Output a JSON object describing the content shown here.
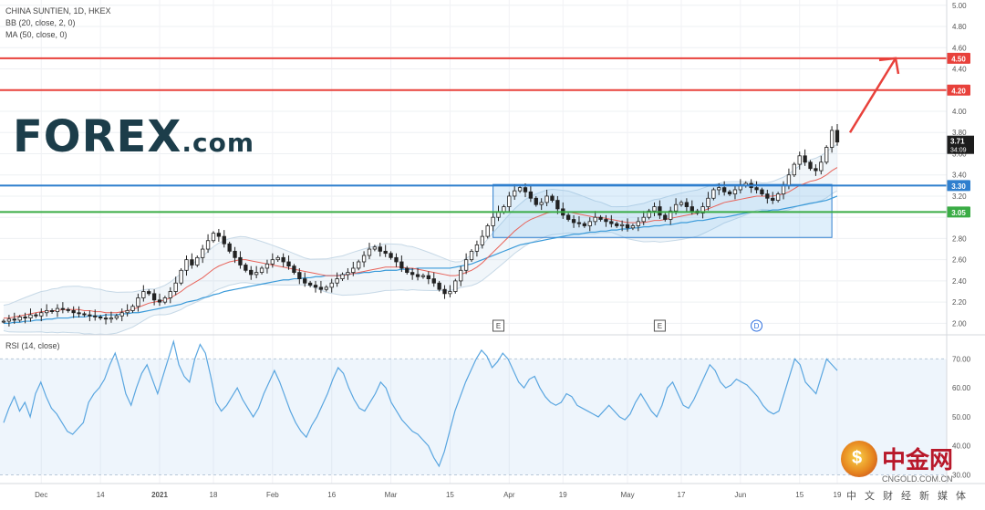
{
  "chart_data": [
    {
      "type": "candlestick",
      "legend_lines": [
        "CHINA SUNTIEN, 1D, HKEX",
        "BB (20, close, 2, 0)",
        "MA (50, close, 0)"
      ],
      "ylim": [
        1.9,
        5.05
      ],
      "y_ticks": [
        2.0,
        2.2,
        2.4,
        2.6,
        2.8,
        3.0,
        3.2,
        3.4,
        3.6,
        3.8,
        4.0,
        4.2,
        4.4,
        4.6,
        4.8,
        5.0
      ],
      "y_tick_labels": [
        "2.00",
        "2.20",
        "2.40",
        "2.60",
        "2.80",
        "3.00",
        "3.20",
        "3.40",
        "3.60",
        "3.80",
        "4.00",
        "4.20",
        "4.40",
        "4.60",
        "4.80",
        "5.00"
      ],
      "x_tick_labels": [
        "Dec",
        "14",
        "2021",
        "18",
        "Feb",
        "16",
        "Mar",
        "15",
        "Apr",
        "19",
        "May",
        "17",
        "Jun",
        "15",
        "19"
      ],
      "horizontal_levels": [
        {
          "value": 4.5,
          "label": "4.50",
          "color": "#e8413b"
        },
        {
          "value": 4.2,
          "label": "4.20",
          "color": "#e8413b"
        },
        {
          "value": 3.3,
          "label": "3.30",
          "color": "#2f7fce"
        },
        {
          "value": 3.05,
          "label": "3.05",
          "color": "#3aac45"
        }
      ],
      "last_price": {
        "value": 3.71,
        "label": "3.71",
        "countdown": "34:09"
      },
      "range_box": {
        "y_top": 3.31,
        "y_bottom": 2.81,
        "fill": "rgba(110,180,235,0.22)",
        "stroke": "#2f7fce"
      },
      "event_markers": [
        "E",
        "E",
        "D"
      ],
      "arrow": {
        "from": [
          3.8
        ],
        "to": [
          4.5
        ],
        "color": "#e8413b"
      },
      "series": [
        {
          "name": "Close",
          "values": [
            2.02,
            2.04,
            2.03,
            2.06,
            2.05,
            2.08,
            2.07,
            2.1,
            2.12,
            2.11,
            2.14,
            2.13,
            2.12,
            2.1,
            2.09,
            2.08,
            2.07,
            2.06,
            2.05,
            2.04,
            2.05,
            2.07,
            2.1,
            2.12,
            2.16,
            2.24,
            2.3,
            2.28,
            2.22,
            2.2,
            2.24,
            2.3,
            2.38,
            2.5,
            2.6,
            2.55,
            2.62,
            2.7,
            2.78,
            2.85,
            2.82,
            2.75,
            2.68,
            2.62,
            2.55,
            2.5,
            2.46,
            2.48,
            2.52,
            2.56,
            2.6,
            2.62,
            2.58,
            2.54,
            2.48,
            2.42,
            2.38,
            2.36,
            2.34,
            2.32,
            2.34,
            2.38,
            2.42,
            2.46,
            2.48,
            2.52,
            2.58,
            2.64,
            2.7,
            2.72,
            2.68,
            2.66,
            2.62,
            2.58,
            2.52,
            2.48,
            2.46,
            2.44,
            2.45,
            2.42,
            2.38,
            2.32,
            2.28,
            2.3,
            2.4,
            2.5,
            2.6,
            2.68,
            2.74,
            2.82,
            2.92,
            3.0,
            3.05,
            3.1,
            3.2,
            3.25,
            3.28,
            3.24,
            3.18,
            3.12,
            3.14,
            3.2,
            3.16,
            3.08,
            3.02,
            2.98,
            2.95,
            2.94,
            2.92,
            2.96,
            3.0,
            2.98,
            2.96,
            2.94,
            2.92,
            2.93,
            2.9,
            2.92,
            2.96,
            3.0,
            3.06,
            3.1,
            3.02,
            2.98,
            3.06,
            3.12,
            3.14,
            3.1,
            3.06,
            3.04,
            3.1,
            3.18,
            3.26,
            3.28,
            3.24,
            3.22,
            3.26,
            3.3,
            3.32,
            3.28,
            3.26,
            3.22,
            3.18,
            3.16,
            3.22,
            3.3,
            3.4,
            3.5,
            3.58,
            3.52,
            3.46,
            3.44,
            3.52,
            3.66,
            3.82,
            3.71
          ]
        },
        {
          "name": "BB Middle",
          "values": [
            2.05,
            2.05,
            2.06,
            2.07,
            2.08,
            2.09,
            2.1,
            2.11,
            2.11,
            2.12,
            2.12,
            2.13,
            2.13,
            2.13,
            2.13,
            2.12,
            2.12,
            2.11,
            2.11,
            2.1,
            2.1,
            2.1,
            2.11,
            2.12,
            2.13,
            2.15,
            2.17,
            2.19,
            2.2,
            2.21,
            2.22,
            2.24,
            2.27,
            2.3,
            2.34,
            2.37,
            2.4,
            2.43,
            2.47,
            2.51,
            2.54,
            2.56,
            2.58,
            2.59,
            2.6,
            2.6,
            2.59,
            2.58,
            2.57,
            2.56,
            2.55,
            2.54,
            2.53,
            2.52,
            2.51,
            2.5,
            2.49,
            2.48,
            2.47,
            2.46,
            2.45,
            2.45,
            2.45,
            2.45,
            2.46,
            2.47,
            2.48,
            2.49,
            2.5,
            2.51,
            2.52,
            2.53,
            2.53,
            2.53,
            2.53,
            2.52,
            2.52,
            2.51,
            2.5,
            2.49,
            2.48,
            2.47,
            2.46,
            2.45,
            2.45,
            2.46,
            2.48,
            2.5,
            2.53,
            2.57,
            2.62,
            2.67,
            2.72,
            2.77,
            2.82,
            2.87,
            2.91,
            2.95,
            2.98,
            3.0,
            3.02,
            3.04,
            3.05,
            3.05,
            3.05,
            3.05,
            3.04,
            3.03,
            3.02,
            3.01,
            3.0,
            3.0,
            2.99,
            2.98,
            2.97,
            2.96,
            2.95,
            2.95,
            2.95,
            2.95,
            2.96,
            2.97,
            2.97,
            2.98,
            2.99,
            3.0,
            3.01,
            3.02,
            3.03,
            3.04,
            3.06,
            3.08,
            3.1,
            3.12,
            3.14,
            3.15,
            3.16,
            3.17,
            3.18,
            3.19,
            3.2,
            3.2,
            3.2,
            3.2,
            3.21,
            3.22,
            3.24,
            3.27,
            3.3,
            3.32,
            3.34,
            3.35,
            3.37,
            3.4,
            3.44,
            3.47
          ]
        },
        {
          "name": "MA 50",
          "values": [
            2.0,
            2.0,
            2.01,
            2.01,
            2.02,
            2.02,
            2.03,
            2.03,
            2.04,
            2.04,
            2.05,
            2.05,
            2.05,
            2.06,
            2.06,
            2.06,
            2.07,
            2.07,
            2.07,
            2.08,
            2.08,
            2.08,
            2.09,
            2.09,
            2.1,
            2.1,
            2.11,
            2.12,
            2.13,
            2.14,
            2.15,
            2.16,
            2.17,
            2.18,
            2.2,
            2.21,
            2.22,
            2.24,
            2.25,
            2.27,
            2.28,
            2.3,
            2.31,
            2.32,
            2.33,
            2.34,
            2.35,
            2.36,
            2.37,
            2.38,
            2.39,
            2.4,
            2.41,
            2.41,
            2.42,
            2.42,
            2.43,
            2.43,
            2.44,
            2.44,
            2.45,
            2.45,
            2.45,
            2.46,
            2.46,
            2.47,
            2.47,
            2.48,
            2.48,
            2.49,
            2.49,
            2.5,
            2.5,
            2.5,
            2.51,
            2.51,
            2.51,
            2.52,
            2.52,
            2.52,
            2.52,
            2.52,
            2.52,
            2.52,
            2.53,
            2.54,
            2.55,
            2.56,
            2.58,
            2.6,
            2.62,
            2.64,
            2.66,
            2.68,
            2.7,
            2.72,
            2.74,
            2.75,
            2.76,
            2.77,
            2.78,
            2.79,
            2.8,
            2.81,
            2.82,
            2.83,
            2.84,
            2.84,
            2.85,
            2.86,
            2.86,
            2.87,
            2.87,
            2.88,
            2.88,
            2.89,
            2.89,
            2.9,
            2.9,
            2.91,
            2.91,
            2.92,
            2.92,
            2.93,
            2.93,
            2.94,
            2.95,
            2.95,
            2.96,
            2.97,
            2.97,
            2.98,
            2.99,
            3.0,
            3.0,
            3.01,
            3.02,
            3.03,
            3.04,
            3.05,
            3.05,
            3.06,
            3.06,
            3.07,
            3.07,
            3.08,
            3.09,
            3.1,
            3.11,
            3.12,
            3.13,
            3.14,
            3.15,
            3.16,
            3.18,
            3.2
          ]
        }
      ]
    },
    {
      "type": "line",
      "title": "RSI (14, close)",
      "ylim": [
        27,
        78
      ],
      "y_ticks": [
        30,
        40,
        50,
        60,
        70
      ],
      "y_tick_labels": [
        "30.00",
        "40.00",
        "50.00",
        "60.00",
        "70.00"
      ],
      "band": [
        30,
        70
      ],
      "series": [
        {
          "name": "RSI",
          "values": [
            48,
            53,
            57,
            52,
            55,
            50,
            58,
            62,
            57,
            53,
            51,
            48,
            45,
            44,
            46,
            48,
            55,
            58,
            60,
            63,
            68,
            72,
            66,
            58,
            54,
            60,
            65,
            68,
            63,
            58,
            64,
            70,
            76,
            68,
            64,
            62,
            70,
            75,
            72,
            64,
            55,
            52,
            54,
            57,
            60,
            56,
            53,
            50,
            53,
            58,
            62,
            66,
            62,
            57,
            52,
            48,
            45,
            43,
            47,
            50,
            54,
            58,
            63,
            67,
            65,
            60,
            56,
            53,
            52,
            55,
            58,
            62,
            60,
            55,
            52,
            49,
            47,
            45,
            44,
            42,
            40,
            36,
            33,
            38,
            45,
            52,
            57,
            62,
            66,
            70,
            73,
            71,
            67,
            69,
            72,
            70,
            66,
            62,
            60,
            63,
            64,
            60,
            57,
            55,
            54,
            55,
            58,
            57,
            54,
            53,
            52,
            51,
            50,
            52,
            54,
            52,
            50,
            49,
            51,
            55,
            58,
            55,
            52,
            50,
            54,
            60,
            62,
            58,
            54,
            53,
            56,
            60,
            64,
            68,
            66,
            62,
            60,
            61,
            63,
            62,
            61,
            59,
            57,
            54,
            52,
            51,
            52,
            58,
            64,
            70,
            68,
            62,
            60,
            58,
            64,
            70,
            68,
            66
          ]
        }
      ]
    }
  ],
  "logo": {
    "brand": "FOREX",
    "suffix": ".com"
  },
  "watermark": {
    "name": "中金网",
    "site": "CNGOLD.COM.CN",
    "sub": "中文财经新媒体"
  }
}
